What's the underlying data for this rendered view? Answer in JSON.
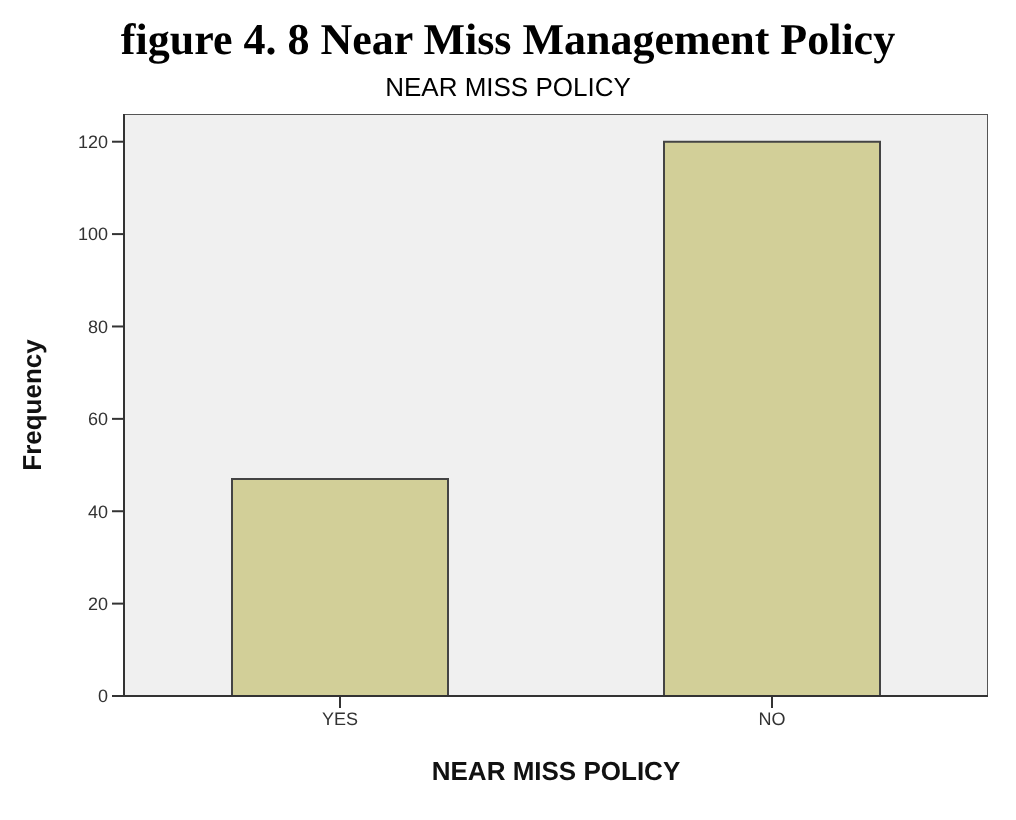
{
  "chart_data": {
    "type": "bar",
    "title": "figure 4. 8 Near Miss Management Policy",
    "subtitle": "NEAR MISS POLICY",
    "xlabel": "NEAR MISS POLICY",
    "ylabel": "Frequency",
    "categories": [
      "YES",
      "NO"
    ],
    "values": [
      47,
      120
    ],
    "color": "#d2cf98",
    "ylim": [
      0,
      126
    ],
    "yticks": [
      0,
      20,
      40,
      60,
      80,
      100,
      120
    ],
    "grid": false,
    "legend": false
  }
}
